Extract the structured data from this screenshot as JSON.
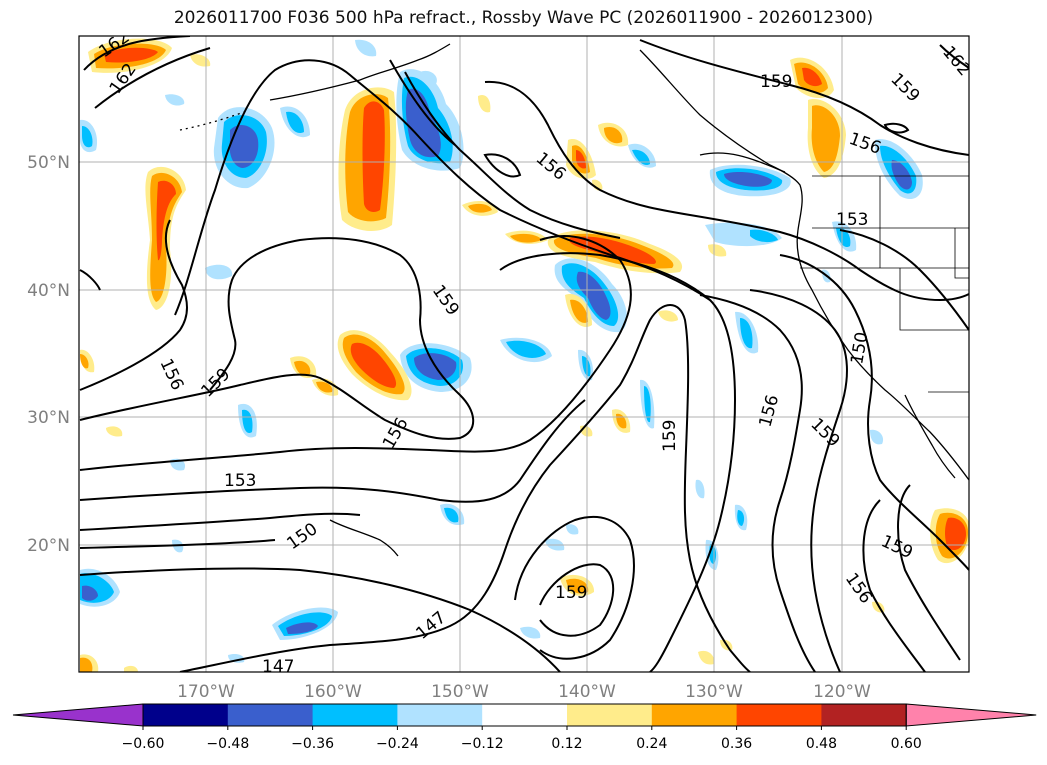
{
  "title": "2026011700 F036 500 hPa refract., Rossby Wave PC (2026011900 - 2026012300)",
  "lat_labels": [
    "50°N",
    "40°N",
    "30°N",
    "20°N"
  ],
  "lon_labels": [
    "170°W",
    "160°W",
    "150°W",
    "140°W",
    "130°W",
    "120°W"
  ],
  "contour_labels": [
    "162",
    "162",
    "159",
    "156",
    "156",
    "159",
    "156",
    "153",
    "150",
    "147",
    "159",
    "156",
    "159",
    "159",
    "156",
    "159",
    "156",
    "153",
    "150",
    "159",
    "147"
  ],
  "colorbar": {
    "ticks": [
      "−0.60",
      "−0.48",
      "−0.36",
      "−0.24",
      "−0.12",
      "0.12",
      "0.24",
      "0.36",
      "0.48",
      "0.60"
    ],
    "colors": [
      "#9932cc",
      "#00008b",
      "#3a5fcd",
      "#00bfff",
      "#b0e2ff",
      "#ffffff",
      "#ffec8b",
      "#ffa500",
      "#ff4500",
      "#b22222",
      "#ff82ab"
    ]
  },
  "colors": {
    "neg_light": "#b0e2ff",
    "neg_mid": "#00bfff",
    "neg_strong": "#3a5fcd",
    "pos_light": "#ffec8b",
    "pos_mid": "#ffa500",
    "pos_strong": "#ff4500",
    "grid": "#b0b0b0",
    "contour": "#000000"
  }
}
